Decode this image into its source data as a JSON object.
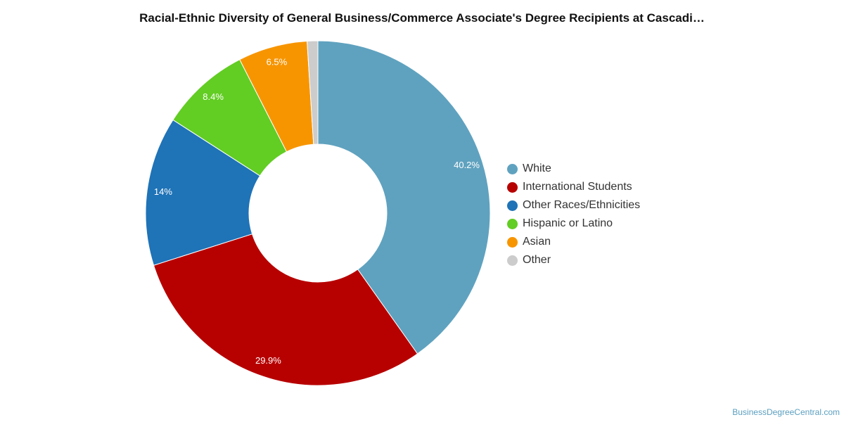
{
  "chart_data": {
    "type": "pie",
    "title": "Racial-Ethnic Diversity of General Business/Commerce Associate's Degree Recipients at Cascadi…",
    "legend_position": "right",
    "donut": true,
    "series": [
      {
        "name": "White",
        "value": 40.2,
        "label": "40.2%",
        "color": "#5fa2bf"
      },
      {
        "name": "International Students",
        "value": 29.9,
        "label": "29.9%",
        "color": "#b70000"
      },
      {
        "name": "Other Races/Ethnicities",
        "value": 14.0,
        "label": "14%",
        "color": "#1f73b7"
      },
      {
        "name": "Hispanic or Latino",
        "value": 8.4,
        "label": "8.4%",
        "color": "#62cd23"
      },
      {
        "name": "Asian",
        "value": 6.5,
        "label": "6.5%",
        "color": "#f79500"
      },
      {
        "name": "Other",
        "value": 1.0,
        "label": "",
        "color": "#cccccc"
      }
    ]
  },
  "credit": "BusinessDegreeCentral.com"
}
